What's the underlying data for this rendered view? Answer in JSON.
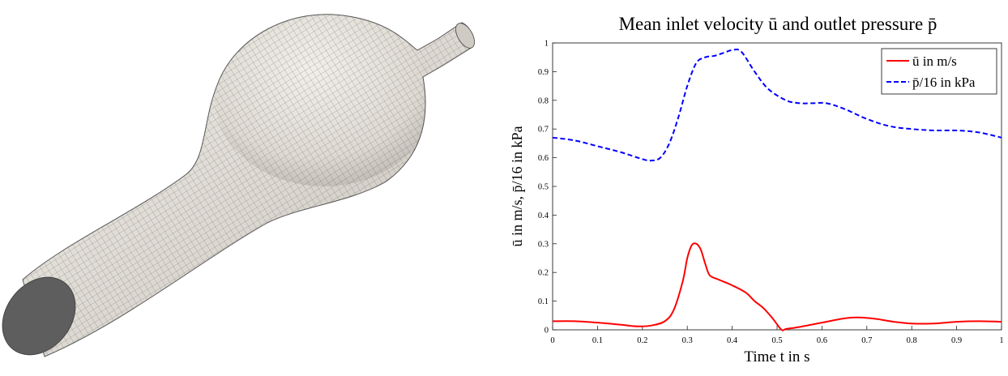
{
  "figure": {
    "left_panel": {
      "content": "3D meshed vessel geometry with aneurysm bulge",
      "surface_color": "#e4e0da",
      "mesh_line_color": "#2c2c2c",
      "cap_color": "#5a5a5a"
    }
  },
  "chart_data": {
    "type": "line",
    "title": "Mean inlet velocity ū and outlet pressure p̄",
    "xlabel": "Time t in s",
    "ylabel": "ū in m/s, p̄/16 in kPa",
    "xlim": [
      0,
      1
    ],
    "ylim": [
      0,
      1
    ],
    "xticks": [
      "0",
      "0.1",
      "0.2",
      "0.3",
      "0.4",
      "0.5",
      "0.6",
      "0.7",
      "0.8",
      "0.9",
      "1"
    ],
    "yticks": [
      "0",
      "0.1",
      "0.2",
      "0.3",
      "0.4",
      "0.5",
      "0.6",
      "0.7",
      "0.8",
      "0.9",
      "1"
    ],
    "legend_position": "top-right",
    "grid": false,
    "series": [
      {
        "name": "ū in m/s",
        "color": "#ff0000",
        "style": "solid",
        "x": [
          0,
          0.05,
          0.1,
          0.15,
          0.19,
          0.22,
          0.25,
          0.27,
          0.29,
          0.3,
          0.31,
          0.32,
          0.33,
          0.34,
          0.35,
          0.37,
          0.4,
          0.43,
          0.45,
          0.47,
          0.49,
          0.51,
          0.52,
          0.55,
          0.6,
          0.65,
          0.68,
          0.72,
          0.76,
          0.8,
          0.85,
          0.9,
          0.95,
          1.0
        ],
        "y": [
          0.03,
          0.03,
          0.025,
          0.018,
          0.012,
          0.015,
          0.03,
          0.07,
          0.17,
          0.25,
          0.295,
          0.3,
          0.28,
          0.23,
          0.19,
          0.175,
          0.155,
          0.13,
          0.1,
          0.075,
          0.04,
          0.0,
          0.003,
          0.01,
          0.025,
          0.04,
          0.043,
          0.038,
          0.028,
          0.022,
          0.022,
          0.028,
          0.03,
          0.028
        ]
      },
      {
        "name": "p̄/16 in kPa",
        "color": "#0000ff",
        "style": "dashed",
        "x": [
          0,
          0.05,
          0.1,
          0.15,
          0.2,
          0.22,
          0.24,
          0.26,
          0.28,
          0.3,
          0.32,
          0.34,
          0.36,
          0.38,
          0.4,
          0.42,
          0.45,
          0.48,
          0.52,
          0.55,
          0.58,
          0.61,
          0.65,
          0.7,
          0.75,
          0.8,
          0.85,
          0.9,
          0.95,
          1.0
        ],
        "y": [
          0.67,
          0.66,
          0.64,
          0.62,
          0.595,
          0.59,
          0.6,
          0.65,
          0.74,
          0.85,
          0.93,
          0.95,
          0.955,
          0.965,
          0.975,
          0.97,
          0.9,
          0.84,
          0.8,
          0.79,
          0.79,
          0.79,
          0.77,
          0.735,
          0.71,
          0.7,
          0.695,
          0.695,
          0.688,
          0.67
        ]
      }
    ]
  }
}
